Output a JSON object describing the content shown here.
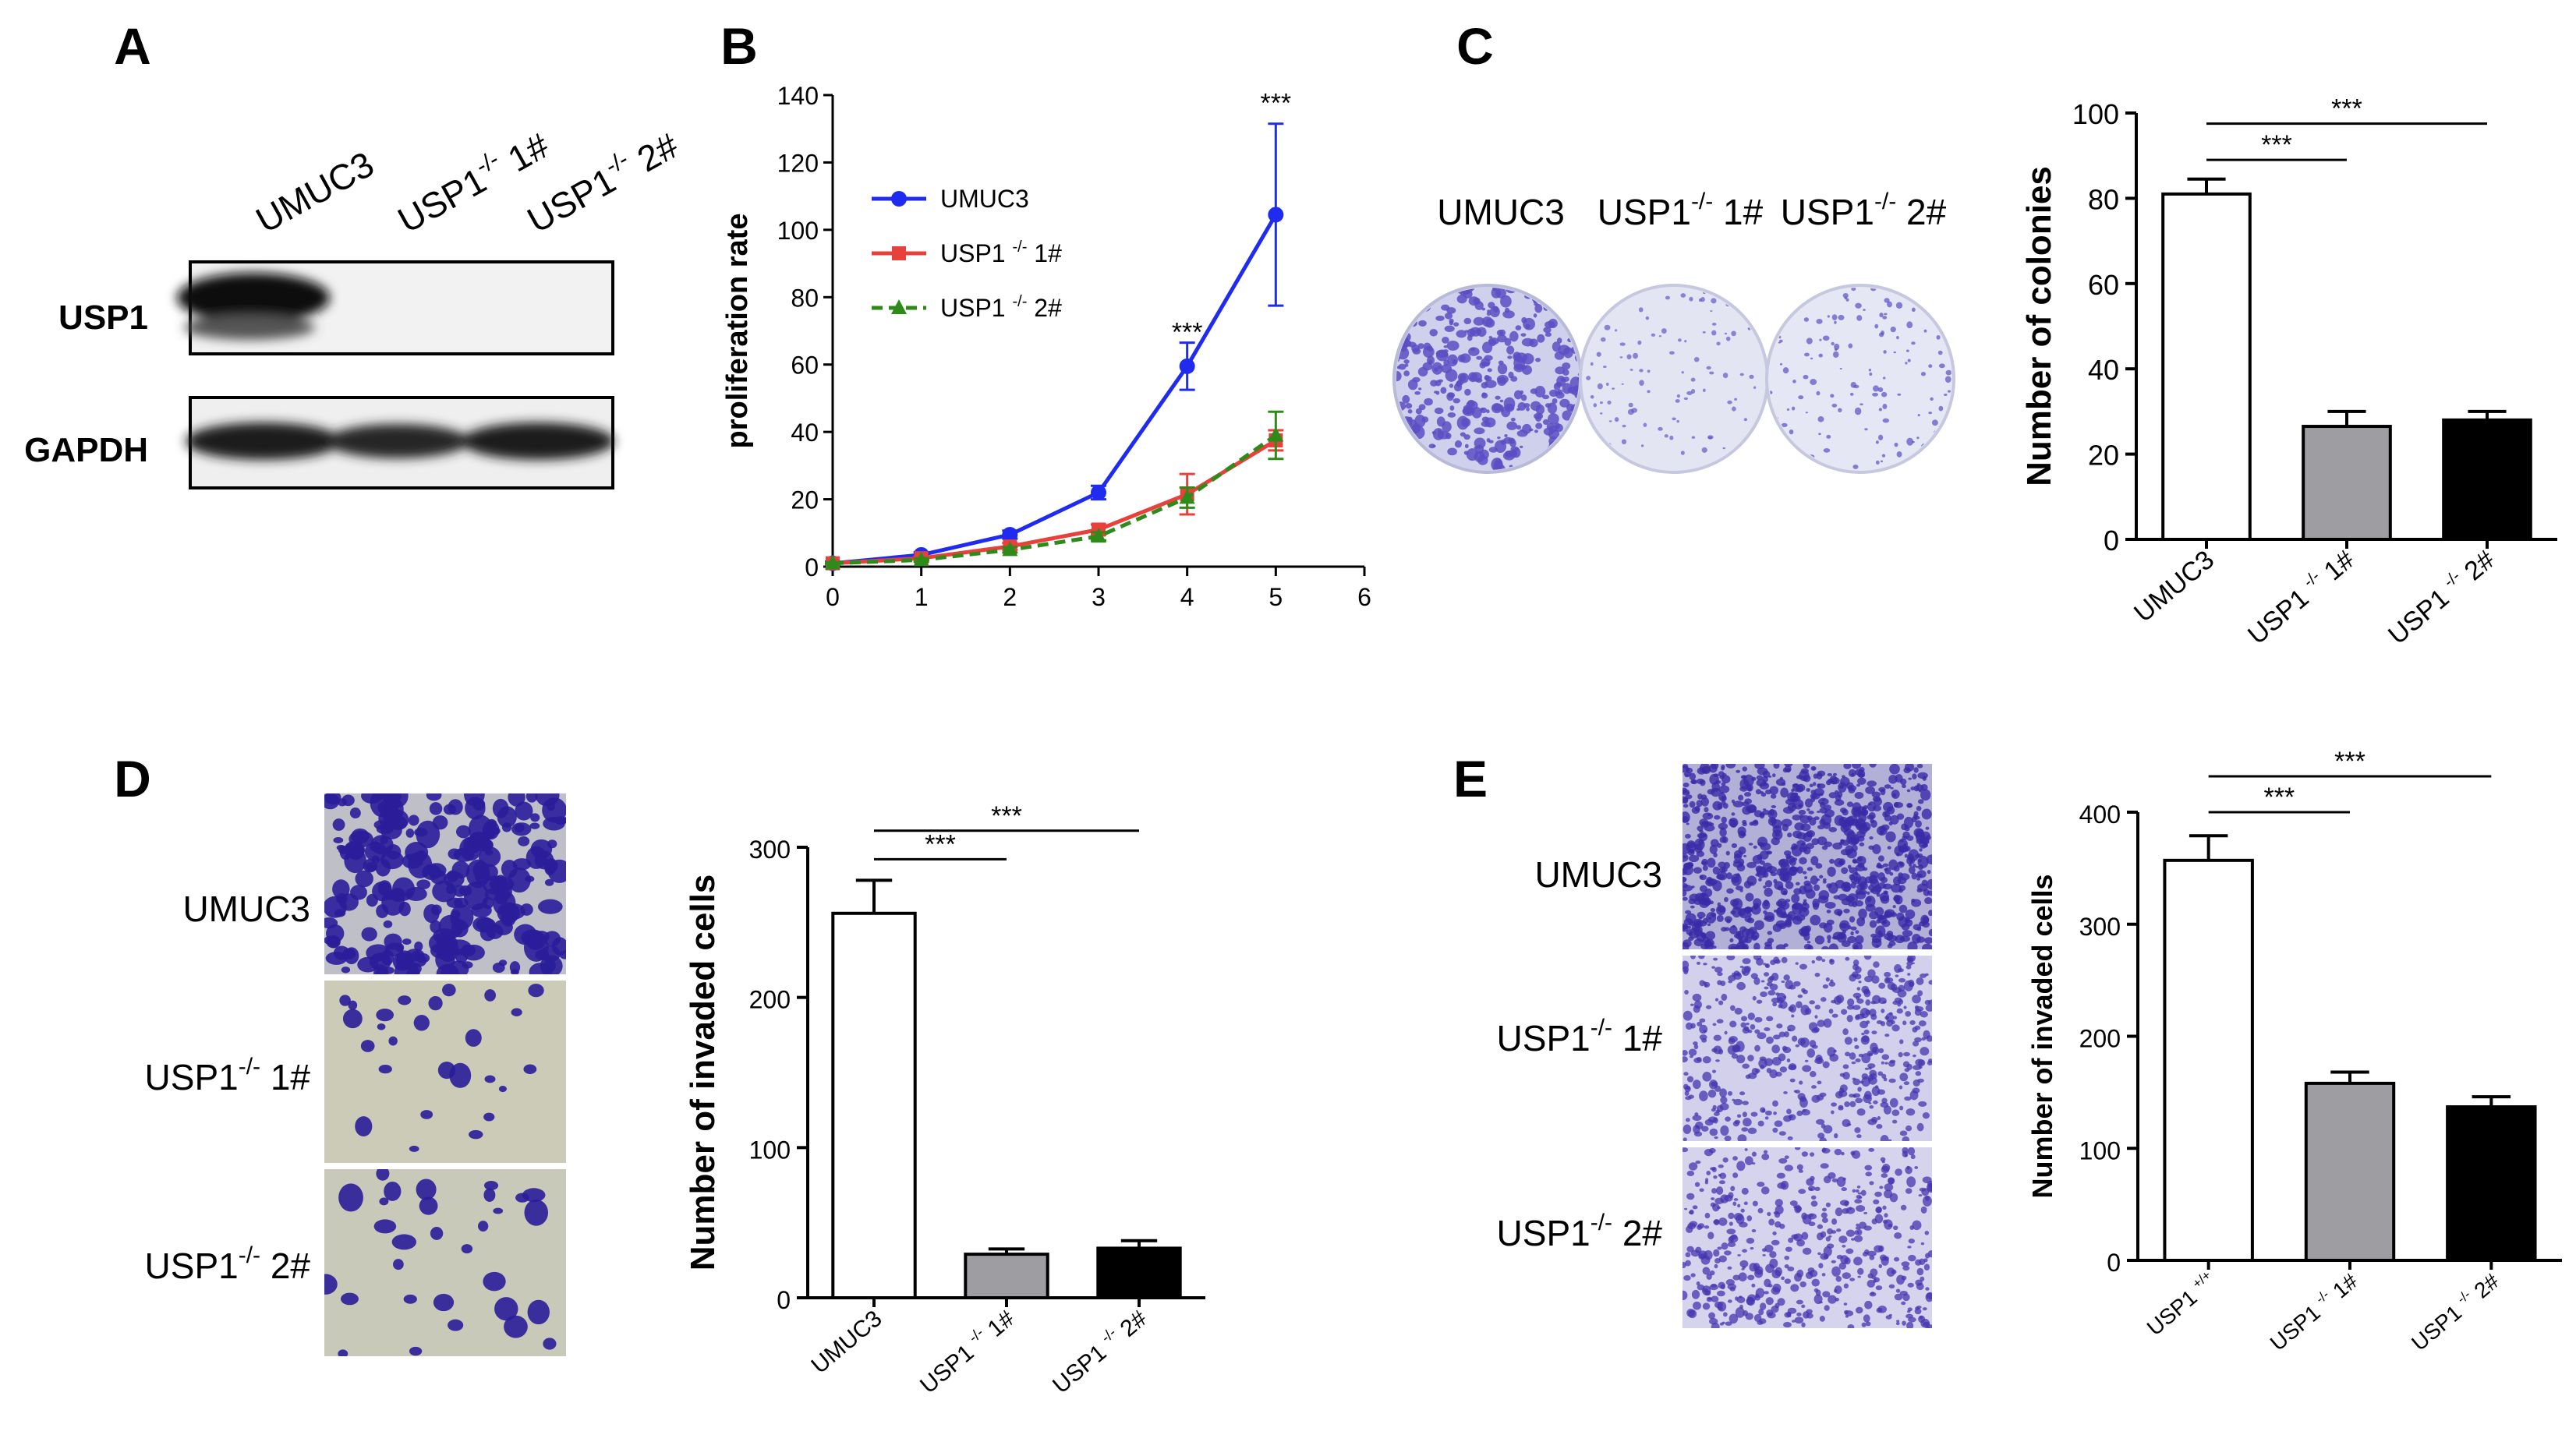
{
  "panels": {
    "A": {
      "letter": "A",
      "lanes": [
        "UMUC3",
        "USP1",
        "-/-",
        " 1#",
        "USP1",
        "-/-",
        " 2#"
      ],
      "bands": [
        "USP1",
        "GAPDH"
      ]
    },
    "B": {
      "letter": "B"
    },
    "C": {
      "letter": "C",
      "photo_labels": [
        {
          "base": "UMUC3",
          "sup": "",
          "tail": ""
        },
        {
          "base": "USP1",
          "sup": "-/-",
          "tail": " 1#"
        },
        {
          "base": "USP1",
          "sup": "-/-",
          "tail": " 2#"
        }
      ]
    },
    "D": {
      "letter": "D",
      "photo_labels": [
        {
          "base": "UMUC3",
          "sup": "",
          "tail": ""
        },
        {
          "base": "USP1",
          "sup": "-/-",
          "tail": " 1#"
        },
        {
          "base": "USP1",
          "sup": "-/-",
          "tail": " 2#"
        }
      ]
    },
    "E": {
      "letter": "E",
      "photo_labels": [
        {
          "base": "UMUC3",
          "sup": "",
          "tail": ""
        },
        {
          "base": "USP1",
          "sup": "-/-",
          "tail": " 1#"
        },
        {
          "base": "USP1",
          "sup": "-/-",
          "tail": " 2#"
        }
      ]
    }
  },
  "colors": {
    "blue": "#1f2cf0",
    "red": "#e8403a",
    "green": "#2e8b1a",
    "gray_bar": "#9d9da2",
    "black_bar": "#000000",
    "stain": "#5b4fc4",
    "dish_bg": "#dfe0f0",
    "transwell_bg": "#c9c9b6"
  },
  "chart_data": [
    {
      "panel": "B",
      "type": "line",
      "title": "",
      "xlabel": "",
      "ylabel": "proliferation rate",
      "xlim": [
        0,
        6
      ],
      "ylim": [
        0,
        140
      ],
      "xticks": [
        "0",
        "1",
        "2",
        "3",
        "4",
        "5",
        "6"
      ],
      "yticks": [
        "0",
        "20",
        "40",
        "60",
        "80",
        "100",
        "120",
        "140"
      ],
      "legend_position": "top-left",
      "x": [
        0,
        1,
        2,
        3,
        4,
        5
      ],
      "series": [
        {
          "name": "UMUC3",
          "sup": "",
          "tail": "",
          "color": "blue",
          "style": "solid",
          "marker": "circle",
          "values": [
            1,
            3.5,
            9.5,
            22,
            59.5,
            104.5
          ],
          "errors": [
            0.5,
            0.8,
            1.2,
            2,
            7,
            27
          ]
        },
        {
          "name": "USP1 ",
          "sup": "-/-",
          "tail": " 1#",
          "color": "red",
          "style": "solid",
          "marker": "square",
          "values": [
            1,
            2.5,
            6,
            11,
            21.5,
            37.5
          ],
          "errors": [
            0.3,
            0.5,
            1,
            1.5,
            6,
            3
          ]
        },
        {
          "name": "USP1 ",
          "sup": "-/-",
          "tail": " 2#",
          "color": "green",
          "style": "dashed",
          "marker": "triangle",
          "values": [
            1,
            2,
            5,
            9,
            20.5,
            39
          ],
          "errors": [
            0.3,
            0.5,
            0.8,
            1.2,
            3,
            7
          ]
        }
      ],
      "annotations": [
        {
          "x": 4,
          "y": 67,
          "text": "***"
        },
        {
          "x": 5,
          "y": 135,
          "text": "***"
        }
      ]
    },
    {
      "panel": "C",
      "type": "bar",
      "title": "",
      "ylabel": "Number of colonies",
      "ylim": [
        0,
        100
      ],
      "yticks": [
        "0",
        "20",
        "40",
        "60",
        "80",
        "100"
      ],
      "categories": [
        {
          "base": "UMUC3",
          "sup": "",
          "tail": ""
        },
        {
          "base": "USP1 ",
          "sup": "-/-",
          "tail": " 1#"
        },
        {
          "base": "USP1 ",
          "sup": "-/-",
          "tail": " 2#"
        }
      ],
      "values": [
        81,
        26.5,
        28
      ],
      "errors": [
        3.5,
        3.5,
        2
      ],
      "fills": [
        "white",
        "gray_bar",
        "black_bar"
      ],
      "significance": [
        {
          "from": 0,
          "to": 1,
          "y": 89,
          "text": "***"
        },
        {
          "from": 0,
          "to": 2,
          "y": 97.5,
          "text": "***"
        }
      ]
    },
    {
      "panel": "D",
      "type": "bar",
      "title": "",
      "ylabel": "Number of invaded cells",
      "ylim": [
        0,
        300
      ],
      "yticks": [
        "0",
        "100",
        "200",
        "300"
      ],
      "categories": [
        {
          "base": "UMUC3",
          "sup": "",
          "tail": ""
        },
        {
          "base": "USP1 ",
          "sup": "-/-",
          "tail": " 1#"
        },
        {
          "base": "USP1 ",
          "sup": "-/-",
          "tail": " 2#"
        }
      ],
      "values": [
        256,
        29,
        33
      ],
      "errors": [
        22,
        3.5,
        5
      ],
      "fills": [
        "white",
        "gray_bar",
        "black_bar"
      ],
      "significance": [
        {
          "from": 0,
          "to": 1,
          "y": 292,
          "text": "***"
        },
        {
          "from": 0,
          "to": 2,
          "y": 311,
          "text": "***"
        }
      ]
    },
    {
      "panel": "E",
      "type": "bar",
      "title": "",
      "ylabel": "Number of invaded cells",
      "ylim": [
        0,
        400
      ],
      "yticks": [
        "0",
        "100",
        "200",
        "300",
        "400"
      ],
      "categories": [
        {
          "base": "USP1 ",
          "sup": "+/+",
          "tail": ""
        },
        {
          "base": "USP1 ",
          "sup": "-/-",
          "tail": " 1#"
        },
        {
          "base": "USP1 ",
          "sup": "-/-",
          "tail": " 2#"
        }
      ],
      "values": [
        357,
        158,
        137
      ],
      "errors": [
        22,
        10,
        9
      ],
      "fills": [
        "white",
        "gray_bar",
        "black_bar"
      ],
      "significance": [
        {
          "from": 0,
          "to": 1,
          "y": 400,
          "text": "***"
        },
        {
          "from": 0,
          "to": 2,
          "y": 432,
          "text": "***"
        }
      ]
    }
  ]
}
